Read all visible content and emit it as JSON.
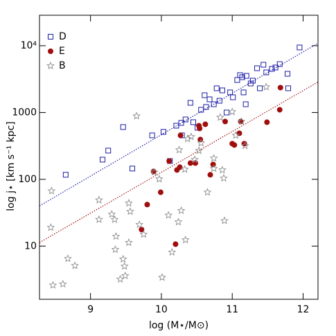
{
  "chart_data": {
    "type": "scatter",
    "xlabel": "log (M⋆/M⊙)",
    "ylabel": "log j⋆ [km s⁻¹ kpc]",
    "xlim": [
      8.28,
      12.21
    ],
    "ylim": [
      1.6,
      28600
    ],
    "ylog": true,
    "xticks": [
      9,
      10,
      11,
      12
    ],
    "yticks": [
      10,
      100,
      1000,
      {
        "value": 10000,
        "label": "10⁴"
      }
    ],
    "legend": "upper left",
    "series": [
      {
        "name": "D",
        "color": "#1a1aa6",
        "marker": "square",
        "x": [
          8.65,
          9.17,
          9.25,
          9.46,
          9.59,
          9.87,
          10.03,
          10.12,
          10.21,
          10.28,
          10.29,
          10.34,
          10.41,
          10.45,
          10.51,
          10.56,
          10.61,
          10.63,
          10.68,
          10.74,
          10.78,
          10.82,
          10.86,
          10.92,
          10.97,
          11.01,
          11.07,
          11.11,
          11.14,
          11.16,
          11.19,
          11.2,
          11.26,
          11.29,
          11.35,
          11.39,
          11.44,
          11.48,
          11.56,
          11.61,
          11.67,
          11.78,
          11.79,
          11.95
        ],
        "values": [
          117,
          197,
          269,
          606,
          145,
          455,
          513,
          188,
          635,
          700,
          455,
          787,
          1397,
          716,
          592,
          1099,
          1815,
          1211,
          1574,
          1330,
          2307,
          1500,
          2146,
          1000,
          2000,
          1690,
          3070,
          3630,
          3377,
          2000,
          1330,
          3540,
          2720,
          2998,
          4600,
          2307,
          5190,
          3990,
          4500,
          4720,
          5310,
          3800,
          2307,
          9420
        ]
      },
      {
        "name": "E",
        "color": "#a00d0d",
        "marker": "circle",
        "x": [
          9.72,
          9.8,
          9.89,
          9.99,
          10.11,
          10.22,
          10.26,
          10.27,
          10.41,
          10.48,
          10.55,
          10.53,
          10.54,
          10.62,
          10.69,
          10.73,
          10.9,
          11.0,
          11.03,
          11.1,
          11.12,
          11.17,
          11.49,
          11.67,
          11.68,
          10.2
        ],
        "values": [
          17.7,
          41.9,
          131,
          64,
          188,
          138,
          152,
          455,
          175,
          175,
          394,
          635,
          578,
          667,
          117,
          167,
          733,
          342,
          326,
          489,
          733,
          342,
          716,
          1099,
          2360,
          10.7
        ]
      },
      {
        "name": "B",
        "color": "#8c8c8c",
        "marker": "star",
        "x": [
          8.45,
          8.44,
          8.68,
          8.47,
          8.61,
          8.78,
          9.12,
          9.12,
          9.3,
          9.34,
          9.36,
          9.35,
          9.54,
          9.56,
          9.46,
          9.48,
          9.49,
          9.42,
          9.54,
          9.69,
          9.75,
          9.65,
          9.9,
          9.97,
          10.01,
          10.1,
          10.15,
          10.24,
          10.25,
          10.28,
          10.33,
          10.34,
          10.37,
          10.42,
          10.47,
          10.53,
          10.56,
          10.65,
          10.74,
          10.74,
          10.83,
          10.86,
          10.88,
          10.89,
          11.05,
          11.13,
          11.18,
          11.48,
          11.0
        ],
        "values": [
          67,
          19,
          6.5,
          2.6,
          2.7,
          5.1,
          49,
          25,
          30,
          25,
          14,
          8.9,
          44,
          33,
          6.4,
          5.0,
          3.6,
          3.2,
          11.3,
          21,
          15,
          887,
          128,
          101,
          3.4,
          29,
          8.1,
          23,
          276,
          34,
          141,
          12.4,
          404,
          434,
          197,
          269,
          350,
          64,
          145,
          207,
          846,
          138,
          104,
          24,
          455,
          733,
          318,
          2415,
          1023
        ]
      }
    ],
    "fit_lines": [
      {
        "color": "#1a1aa6",
        "x": [
          8.28,
          12.21
        ],
        "values": [
          40,
          10900
        ]
      },
      {
        "color": "#a00d0d",
        "x": [
          8.28,
          12.21
        ],
        "values": [
          11.3,
          2860
        ]
      }
    ]
  }
}
